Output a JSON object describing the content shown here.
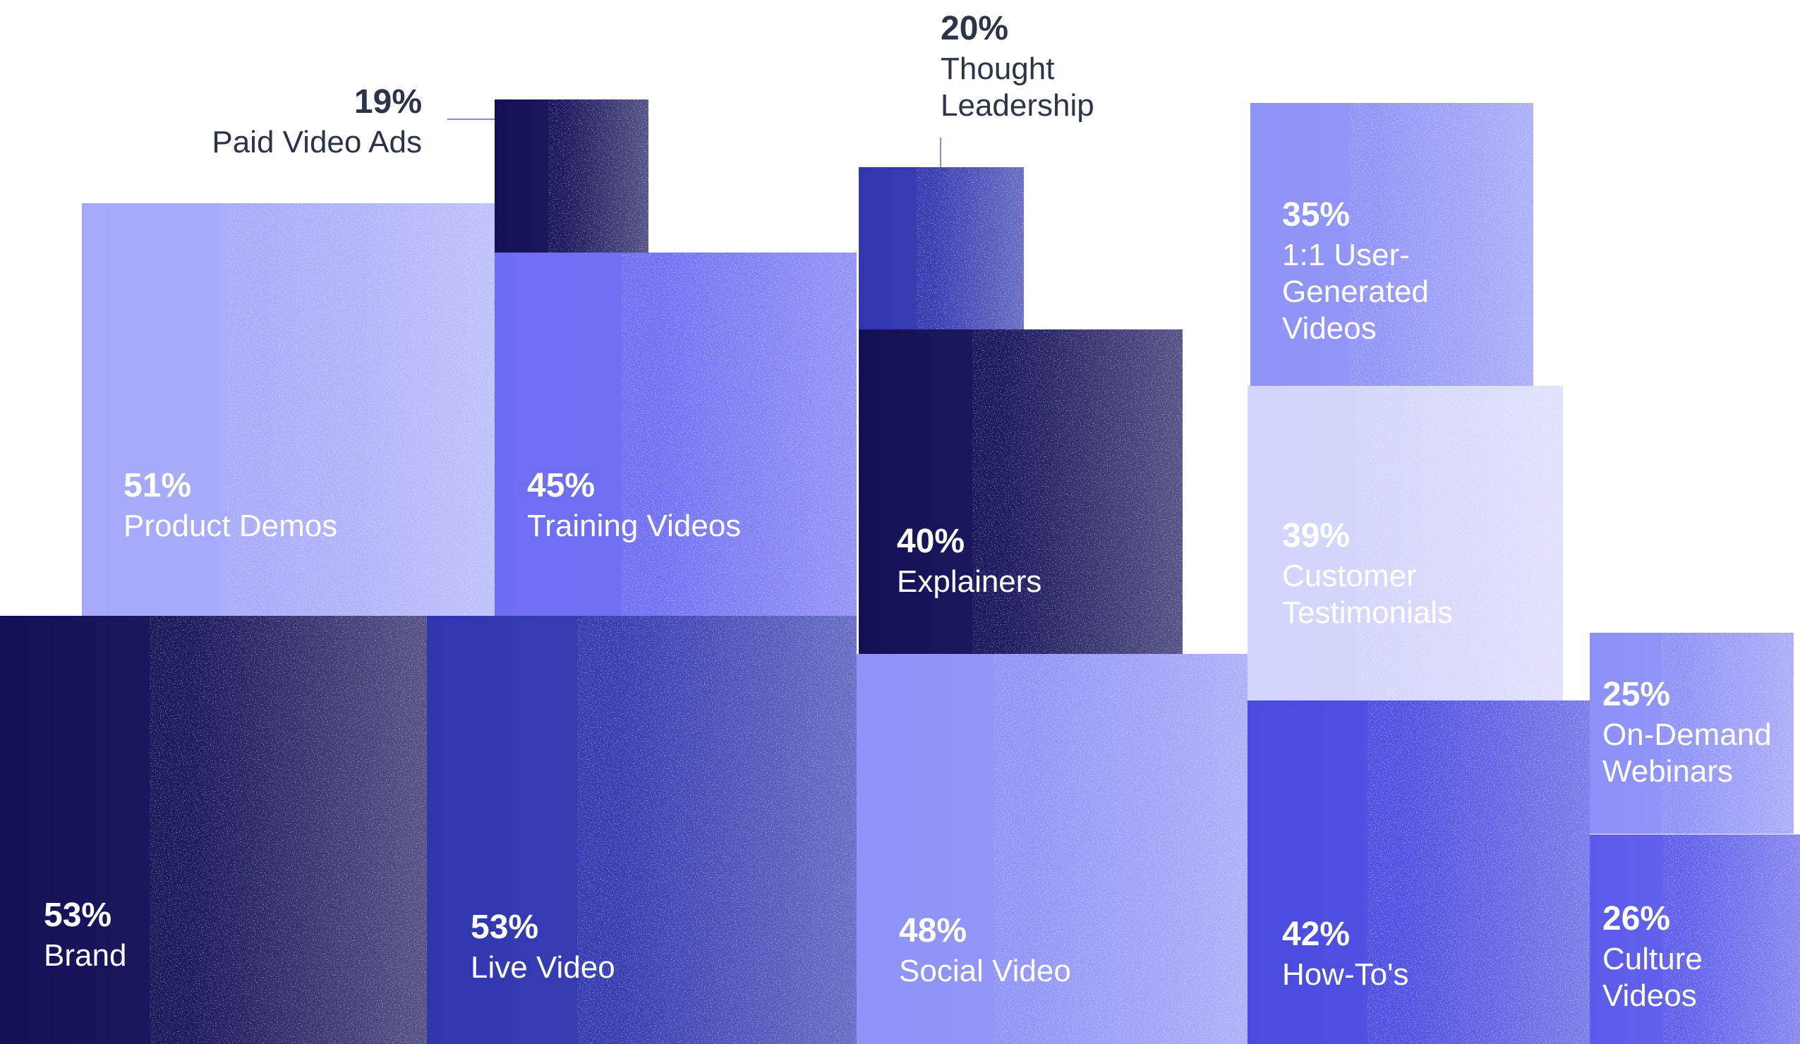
{
  "chart_data": {
    "type": "treemap",
    "title": "",
    "items": [
      {
        "value": 53,
        "unit": "%",
        "label": [
          "Brand"
        ],
        "color": "#141057"
      },
      {
        "value": 53,
        "unit": "%",
        "label": [
          "Live Video"
        ],
        "color": "#3036AE"
      },
      {
        "value": 48,
        "unit": "%",
        "label": [
          "Social Video"
        ],
        "color": "#8F92F7"
      },
      {
        "value": 42,
        "unit": "%",
        "label": [
          "How-To's"
        ],
        "color": "#4A4BE0"
      },
      {
        "value": 26,
        "unit": "%",
        "label": [
          "Culture",
          "Videos"
        ],
        "color": "#5C5BEB"
      },
      {
        "value": 25,
        "unit": "%",
        "label": [
          "On-Demand",
          "Webinars"
        ],
        "color": "#8D90F8"
      },
      {
        "value": 51,
        "unit": "%",
        "label": [
          "Product Demos"
        ],
        "color": "#A6A9FA"
      },
      {
        "value": 45,
        "unit": "%",
        "label": [
          "Training Videos"
        ],
        "color": "#6D6CF4"
      },
      {
        "value": 40,
        "unit": "%",
        "label": [
          "Explainers"
        ],
        "color": "#141057"
      },
      {
        "value": 39,
        "unit": "%",
        "label": [
          "Customer",
          "Testimonials"
        ],
        "color": "#D4D5FC"
      },
      {
        "value": 35,
        "unit": "%",
        "label": [
          "1:1 User-",
          "Generated",
          "Videos"
        ],
        "color": "#8F92F7"
      },
      {
        "value": 19,
        "unit": "%",
        "label": [
          "Paid Video Ads"
        ],
        "color": "#141057",
        "callout": true
      },
      {
        "value": 20,
        "unit": "%",
        "label": [
          "Thought",
          "Leadership"
        ],
        "color": "#3036AE",
        "callout": true
      }
    ]
  },
  "colors": {
    "inside_text": "#ffffff",
    "callout_text": "#2E3447",
    "callout_line": "#8E8CC8"
  }
}
